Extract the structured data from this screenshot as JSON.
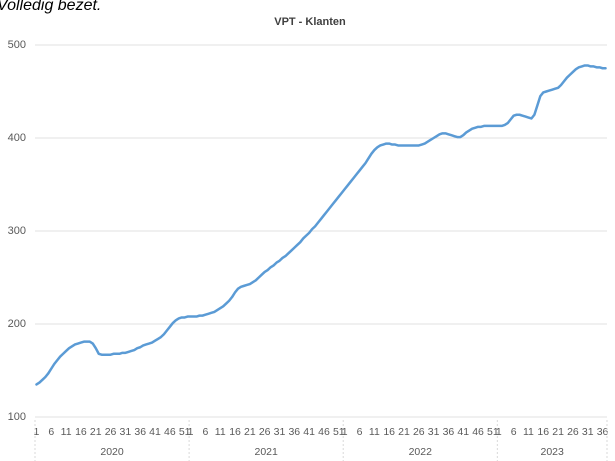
{
  "chart_data": {
    "type": "line",
    "note": "Volledig bezet.",
    "title": "VPT - Klanten",
    "color": "#5b9bd5",
    "grid": true,
    "ylim": [
      100,
      500
    ],
    "yticks": [
      100,
      200,
      300,
      400,
      500
    ],
    "groups": [
      {
        "label": "2020",
        "categories": [
          "1",
          null,
          null,
          null,
          null,
          "6",
          null,
          null,
          null,
          null,
          "11",
          null,
          null,
          null,
          null,
          "16",
          null,
          null,
          null,
          null,
          "21",
          null,
          null,
          null,
          null,
          "26",
          null,
          null,
          null,
          null,
          "31",
          null,
          null,
          null,
          null,
          "36",
          null,
          null,
          null,
          null,
          "41",
          null,
          null,
          null,
          null,
          "46",
          null,
          null,
          null,
          null,
          "51",
          null
        ]
      },
      {
        "label": "2021",
        "categories": [
          "1",
          null,
          null,
          null,
          null,
          "6",
          null,
          null,
          null,
          null,
          "11",
          null,
          null,
          null,
          null,
          "16",
          null,
          null,
          null,
          null,
          "21",
          null,
          null,
          null,
          null,
          "26",
          null,
          null,
          null,
          null,
          "31",
          null,
          null,
          null,
          null,
          "36",
          null,
          null,
          null,
          null,
          "41",
          null,
          null,
          null,
          null,
          "46",
          null,
          null,
          null,
          null,
          "51",
          null
        ]
      },
      {
        "label": "2022",
        "categories": [
          "1",
          null,
          null,
          null,
          null,
          "6",
          null,
          null,
          null,
          null,
          "11",
          null,
          null,
          null,
          null,
          "16",
          null,
          null,
          null,
          null,
          "21",
          null,
          null,
          null,
          null,
          "26",
          null,
          null,
          null,
          null,
          "31",
          null,
          null,
          null,
          null,
          "36",
          null,
          null,
          null,
          null,
          "41",
          null,
          null,
          null,
          null,
          "46",
          null,
          null,
          null,
          null,
          "51",
          null
        ]
      },
      {
        "label": "2023",
        "categories": [
          "1",
          null,
          null,
          null,
          null,
          "6",
          null,
          null,
          null,
          null,
          "11",
          null,
          null,
          null,
          null,
          "16",
          null,
          null,
          null,
          null,
          "21",
          null,
          null,
          null,
          null,
          "26",
          null,
          null,
          null,
          null,
          "31",
          null,
          null,
          null,
          null,
          "36",
          null
        ]
      }
    ],
    "values": [
      135,
      137,
      140,
      143,
      147,
      152,
      157,
      161,
      165,
      168,
      171,
      174,
      176,
      178,
      179,
      180,
      181,
      181,
      181,
      179,
      174,
      168,
      167,
      167,
      167,
      167,
      168,
      168,
      168,
      169,
      169,
      170,
      171,
      172,
      174,
      175,
      177,
      178,
      179,
      180,
      182,
      184,
      186,
      189,
      193,
      197,
      201,
      204,
      206,
      207,
      207,
      208,
      208,
      208,
      208,
      209,
      209,
      210,
      211,
      212,
      213,
      215,
      217,
      219,
      222,
      225,
      229,
      234,
      238,
      240,
      241,
      242,
      243,
      245,
      247,
      250,
      253,
      256,
      258,
      261,
      263,
      266,
      268,
      271,
      273,
      276,
      279,
      282,
      285,
      288,
      292,
      295,
      298,
      302,
      305,
      309,
      313,
      317,
      321,
      325,
      329,
      333,
      337,
      341,
      345,
      349,
      353,
      357,
      361,
      365,
      369,
      373,
      378,
      383,
      387,
      390,
      392,
      393,
      394,
      394,
      393,
      393,
      392,
      392,
      392,
      392,
      392,
      392,
      392,
      392,
      393,
      394,
      396,
      398,
      400,
      402,
      404,
      405,
      405,
      404,
      403,
      402,
      401,
      401,
      403,
      406,
      408,
      410,
      411,
      412,
      412,
      413,
      413,
      413,
      413,
      413,
      413,
      413,
      414,
      416,
      420,
      424,
      425,
      425,
      424,
      423,
      422,
      421,
      425,
      435,
      445,
      449,
      450,
      451,
      452,
      453,
      454,
      457,
      461,
      465,
      468,
      471,
      474,
      476,
      477,
      478,
      478,
      477,
      477,
      476,
      476,
      475,
      475
    ]
  }
}
